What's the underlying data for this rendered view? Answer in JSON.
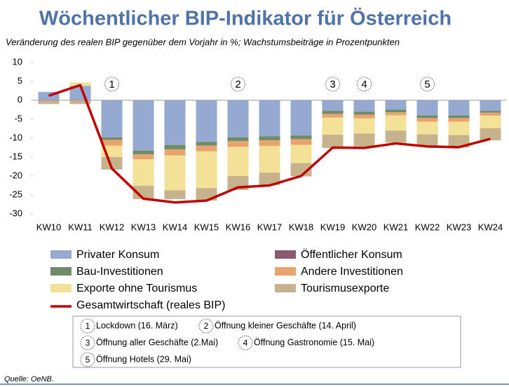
{
  "chart_data": {
    "type": "bar",
    "title": "Wöchentlicher BIP-Indikator für Österreich",
    "subtitle": "Veränderung des realen BIP gegenüber dem Vorjahr in %; Wachstumsbeiträge in Prozentpunkten",
    "source": "Quelle: OeNB.",
    "categories": [
      "KW10",
      "KW11",
      "KW12",
      "KW13",
      "KW14",
      "KW15",
      "KW16",
      "KW17",
      "KW18",
      "KW19",
      "KW20",
      "KW21",
      "KW22",
      "KW23",
      "KW24"
    ],
    "ylim": [
      -30,
      10
    ],
    "yticks": [
      -30,
      -25,
      -20,
      -15,
      -10,
      -5,
      0,
      5,
      10
    ],
    "stacked": true,
    "series": [
      {
        "name": "Privater Konsum",
        "color": "#95a9d1",
        "values": [
          2.2,
          3.8,
          -9.8,
          -13.3,
          -11.8,
          -11,
          -9.8,
          -9.5,
          -9.3,
          -2.8,
          -3,
          -2.5,
          -4,
          -4,
          -2.8
        ]
      },
      {
        "name": "Öffentlicher Konsum",
        "color": "#8b5a6e",
        "values": [
          0,
          0,
          0,
          0,
          0,
          0,
          0,
          0,
          0,
          0,
          0,
          0,
          0,
          0,
          0
        ]
      },
      {
        "name": "Bau-Investitionen",
        "color": "#6e8c67",
        "values": [
          0,
          0,
          -0.7,
          -1,
          -1.2,
          -1,
          -1,
          -1.1,
          -1,
          -0.8,
          -0.8,
          -0.7,
          -0.7,
          -0.7,
          -0.5
        ]
      },
      {
        "name": "Andere Investitionen",
        "color": "#e9a46d",
        "values": [
          0,
          0,
          -1.5,
          -1.3,
          -1.6,
          -1.5,
          -1.5,
          -1.5,
          -1.5,
          -1,
          -1,
          -0.8,
          -1,
          -1,
          -0.8
        ]
      },
      {
        "name": "Exporte ohne Tourismus",
        "color": "#f3e197",
        "values": [
          0,
          0.9,
          -3,
          -7,
          -9.2,
          -9.7,
          -7.7,
          -7,
          -4.8,
          -4.5,
          -4,
          -4,
          -3.3,
          -3.5,
          -3.3
        ]
      },
      {
        "name": "Tourismusexporte",
        "color": "#c6b38d",
        "values": [
          -1,
          -1,
          -3.3,
          -3.5,
          -2.3,
          -3.3,
          -3.7,
          -3.3,
          -3.5,
          -3.5,
          -3.4,
          -3.2,
          -3.2,
          -3.3,
          -3.2
        ]
      },
      {
        "name": "Gesamtwirtschaft (reales BIP)",
        "type": "line",
        "color": "#c00000",
        "values": [
          1.2,
          4,
          -18,
          -26,
          -27,
          -26.5,
          -23,
          -22.5,
          -20,
          -12.5,
          -12.6,
          -11.4,
          -12.2,
          -12.4,
          -10.2
        ]
      }
    ],
    "markers": [
      {
        "label": "1",
        "at": "KW12"
      },
      {
        "label": "2",
        "at": "KW16"
      },
      {
        "label": "3",
        "at": "KW19"
      },
      {
        "label": "4",
        "at": "KW20"
      },
      {
        "label": "5",
        "at": "KW22"
      }
    ],
    "notes": [
      {
        "number": "1",
        "text": "Lockdown (16. März)"
      },
      {
        "number": "2",
        "text": "Öffnung kleiner Geschäfte (14. April)"
      },
      {
        "number": "3",
        "text": "Öffnung aller Geschäfte (2.Mai)"
      },
      {
        "number": "4",
        "text": "Öffnung Gastronomie (15. Mai)"
      },
      {
        "number": "5",
        "text": "Öffnung Hotels (29. Mai)"
      }
    ]
  }
}
